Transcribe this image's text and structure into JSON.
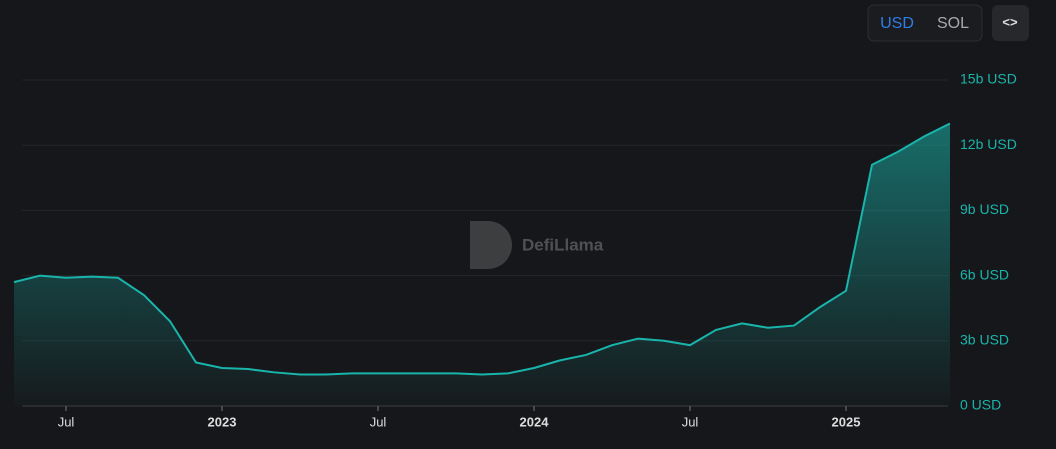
{
  "toggle": {
    "options": [
      "USD",
      "SOL"
    ],
    "active": 0
  },
  "embed_button": "<>",
  "watermark": "DefiLlama",
  "chart_data": {
    "type": "area",
    "x": [
      "2022-05",
      "2022-06",
      "2022-07",
      "2022-08",
      "2022-09",
      "2022-10",
      "2022-11",
      "2022-12",
      "2023-01",
      "2023-02",
      "2023-03",
      "2023-04",
      "2023-05",
      "2023-06",
      "2023-07",
      "2023-08",
      "2023-09",
      "2023-10",
      "2023-11",
      "2023-12",
      "2024-01",
      "2024-02",
      "2024-03",
      "2024-04",
      "2024-05",
      "2024-06",
      "2024-07",
      "2024-08",
      "2024-09",
      "2024-10",
      "2024-11",
      "2024-12",
      "2025-01",
      "2025-02",
      "2025-03",
      "2025-04",
      "2025-05"
    ],
    "values": [
      5.7,
      6.0,
      5.9,
      5.95,
      5.9,
      5.1,
      3.9,
      2.0,
      1.75,
      1.7,
      1.55,
      1.45,
      1.45,
      1.5,
      1.5,
      1.5,
      1.5,
      1.5,
      1.45,
      1.5,
      1.75,
      2.1,
      2.35,
      2.8,
      3.1,
      3.0,
      2.8,
      3.5,
      3.8,
      3.6,
      3.7,
      4.55,
      5.3,
      11.1,
      11.7,
      12.4,
      13.0
    ],
    "color": "#19b4ab",
    "xlim": [
      "2022-05",
      "2025-05"
    ],
    "xticks": [
      {
        "value": "2022-07",
        "label": "Jul"
      },
      {
        "value": "2023-01",
        "label": "2023"
      },
      {
        "value": "2023-07",
        "label": "Jul"
      },
      {
        "value": "2024-01",
        "label": "2024"
      },
      {
        "value": "2024-07",
        "label": "Jul"
      },
      {
        "value": "2025-01",
        "label": "2025"
      }
    ],
    "ylim": [
      0,
      15
    ],
    "yticks": [
      {
        "value": 0,
        "label": "0 USD"
      },
      {
        "value": 3,
        "label": "3b USD"
      },
      {
        "value": 6,
        "label": "6b USD"
      },
      {
        "value": 9,
        "label": "9b USD"
      },
      {
        "value": 12,
        "label": "12b USD"
      },
      {
        "value": 15,
        "label": "15b USD"
      }
    ],
    "grid": true
  }
}
